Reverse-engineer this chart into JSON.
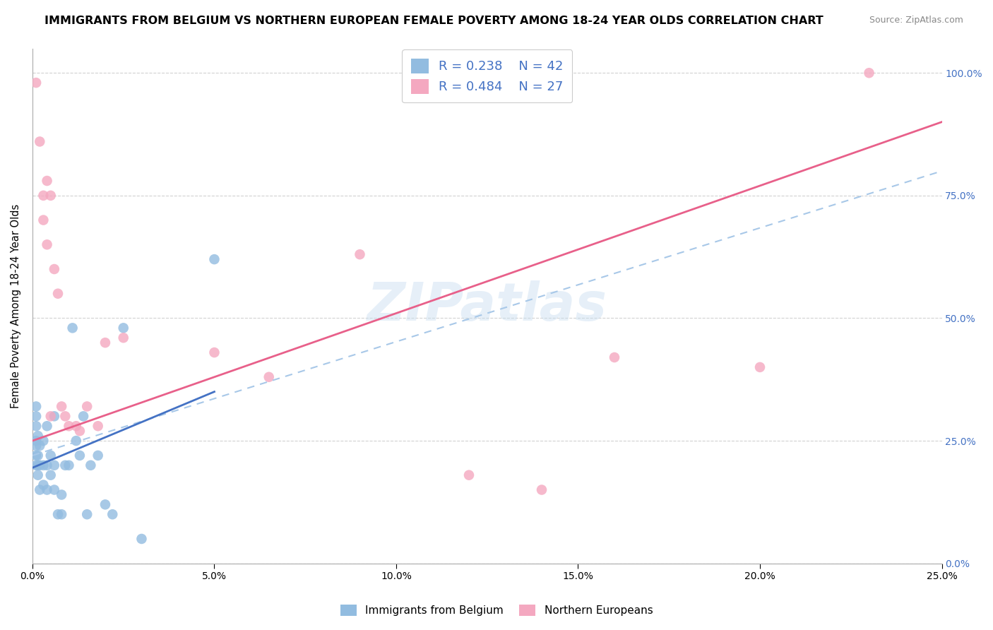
{
  "title": "IMMIGRANTS FROM BELGIUM VS NORTHERN EUROPEAN FEMALE POVERTY AMONG 18-24 YEAR OLDS CORRELATION CHART",
  "source": "Source: ZipAtlas.com",
  "ylabel": "Female Poverty Among 18-24 Year Olds",
  "xlim": [
    0.0,
    0.25
  ],
  "ylim": [
    0.0,
    1.05
  ],
  "watermark": "ZIPatlas",
  "legend_label1": "Immigrants from Belgium",
  "legend_label2": "Northern Europeans",
  "color_blue": "#92bce0",
  "color_pink": "#f4a8c0",
  "trendline_blue": "#4472c4",
  "trendline_pink": "#e8608a",
  "trendline_dashed_color": "#a8c8e8",
  "blue_scatter_x": [
    0.001,
    0.001,
    0.001,
    0.001,
    0.001,
    0.001,
    0.001,
    0.0015,
    0.0015,
    0.0015,
    0.0015,
    0.002,
    0.002,
    0.002,
    0.003,
    0.003,
    0.003,
    0.004,
    0.004,
    0.004,
    0.005,
    0.005,
    0.006,
    0.006,
    0.006,
    0.007,
    0.008,
    0.008,
    0.009,
    0.01,
    0.011,
    0.012,
    0.013,
    0.014,
    0.015,
    0.016,
    0.018,
    0.02,
    0.022,
    0.025,
    0.03,
    0.05
  ],
  "blue_scatter_y": [
    0.2,
    0.22,
    0.24,
    0.25,
    0.28,
    0.3,
    0.32,
    0.18,
    0.2,
    0.22,
    0.26,
    0.15,
    0.2,
    0.24,
    0.16,
    0.2,
    0.25,
    0.15,
    0.2,
    0.28,
    0.18,
    0.22,
    0.15,
    0.2,
    0.3,
    0.1,
    0.1,
    0.14,
    0.2,
    0.2,
    0.48,
    0.25,
    0.22,
    0.3,
    0.1,
    0.2,
    0.22,
    0.12,
    0.1,
    0.48,
    0.05,
    0.62
  ],
  "pink_scatter_x": [
    0.001,
    0.002,
    0.003,
    0.004,
    0.005,
    0.006,
    0.007,
    0.008,
    0.009,
    0.01,
    0.012,
    0.013,
    0.015,
    0.018,
    0.02,
    0.025,
    0.05,
    0.065,
    0.09,
    0.12,
    0.14,
    0.2,
    0.23,
    0.003,
    0.004,
    0.005,
    0.16
  ],
  "pink_scatter_y": [
    0.98,
    0.86,
    0.7,
    0.65,
    0.3,
    0.6,
    0.55,
    0.32,
    0.3,
    0.28,
    0.28,
    0.27,
    0.32,
    0.28,
    0.45,
    0.46,
    0.43,
    0.38,
    0.63,
    0.18,
    0.15,
    0.4,
    1.0,
    0.75,
    0.78,
    0.75,
    0.42
  ],
  "blue_trend_x0": 0.0,
  "blue_trend_y0": 0.195,
  "blue_trend_x1": 0.05,
  "blue_trend_y1": 0.35,
  "pink_trend_x0": 0.0,
  "pink_trend_y0": 0.25,
  "pink_trend_x1": 0.25,
  "pink_trend_y1": 0.9,
  "dash_trend_x0": 0.0,
  "dash_trend_y0": 0.22,
  "dash_trend_x1": 0.25,
  "dash_trend_y1": 0.8
}
